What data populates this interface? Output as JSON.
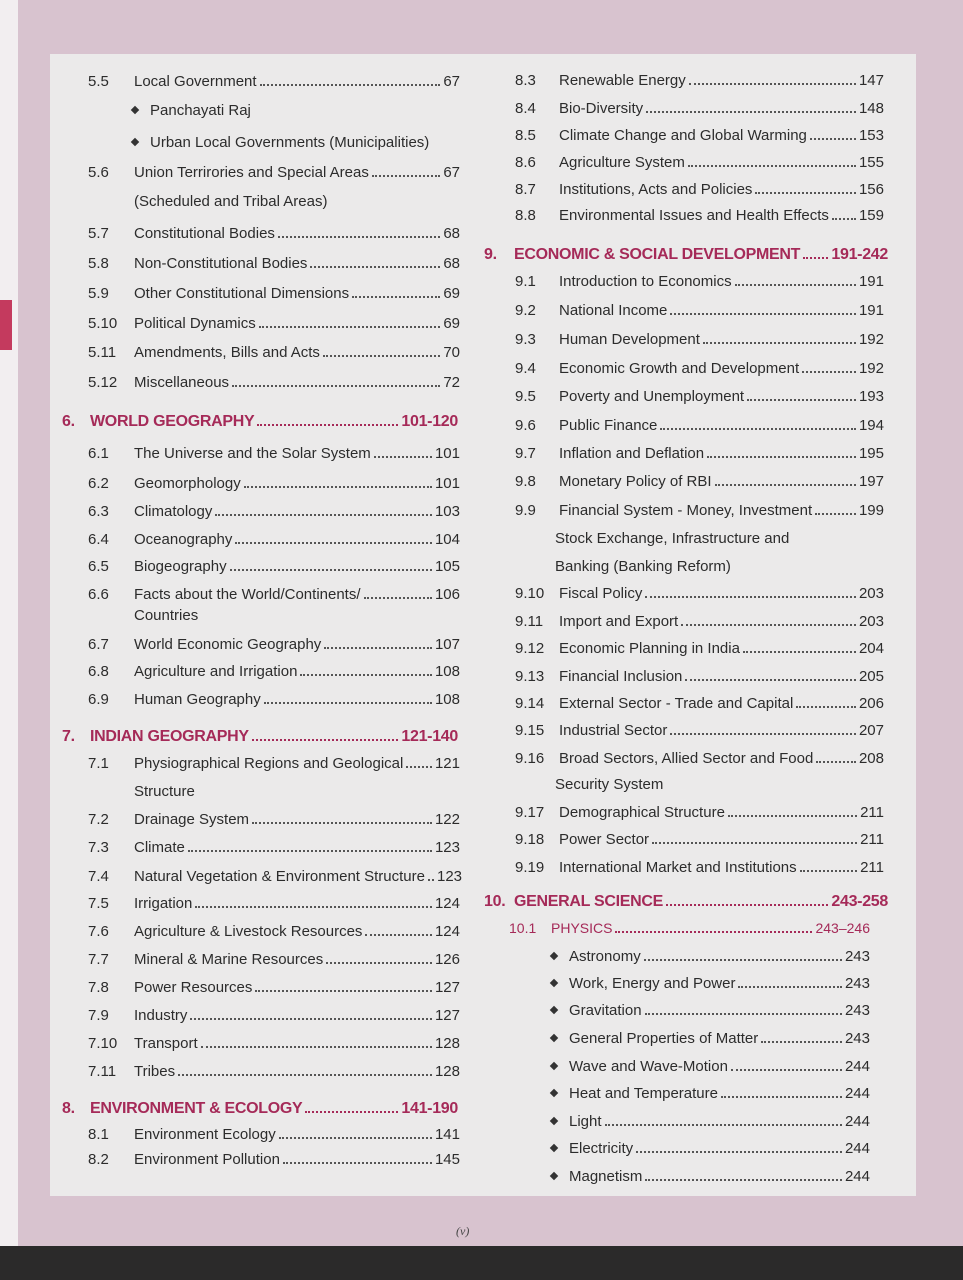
{
  "colors": {
    "heading": "#a52a58",
    "text": "#2c2c2c",
    "panel": "#ebeaea",
    "page_bg": "#d8c3cf"
  },
  "left": [
    {
      "k": "item",
      "n": "5.5",
      "t": "Local Government",
      "p": "67"
    },
    {
      "k": "sub",
      "t": "Panchayati Raj"
    },
    {
      "k": "sub",
      "t": "Urban Local Governments (Municipalities)"
    },
    {
      "k": "item",
      "n": "5.6",
      "t": "Union Terrirories and Special Areas",
      "p": "67"
    },
    {
      "k": "cont",
      "t": "(Scheduled and Tribal Areas)"
    },
    {
      "k": "item",
      "n": "5.7",
      "t": "Constitutional Bodies",
      "p": "68"
    },
    {
      "k": "item",
      "n": "5.8",
      "t": "Non-Constitutional Bodies",
      "p": "68"
    },
    {
      "k": "item",
      "n": "5.9",
      "t": "Other Constitutional Dimensions",
      "p": "69"
    },
    {
      "k": "item",
      "n": "5.10",
      "t": "Political Dynamics",
      "p": "69"
    },
    {
      "k": "item",
      "n": "5.11",
      "t": "Amendments, Bills and Acts",
      "p": "70"
    },
    {
      "k": "item",
      "n": "5.12",
      "t": "Miscellaneous",
      "p": "72"
    },
    {
      "k": "head",
      "n": "6.",
      "t": "WORLD GEOGRAPHY",
      "p": "101-120"
    },
    {
      "k": "item",
      "n": "6.1",
      "t": "The Universe and the Solar System",
      "p": "101"
    },
    {
      "k": "item",
      "n": "6.2",
      "t": "Geomorphology",
      "p": "101"
    },
    {
      "k": "item",
      "n": "6.3",
      "t": "Climatology",
      "p": "103"
    },
    {
      "k": "item",
      "n": "6.4",
      "t": "Oceanography",
      "p": "104"
    },
    {
      "k": "item",
      "n": "6.5",
      "t": "Biogeography",
      "p": "105"
    },
    {
      "k": "item",
      "n": "6.6",
      "t": "Facts about the World/Continents/",
      "p": "106"
    },
    {
      "k": "cont",
      "t": "Countries"
    },
    {
      "k": "item",
      "n": "6.7",
      "t": "World Economic Geography",
      "p": "107"
    },
    {
      "k": "item",
      "n": "6.8",
      "t": "Agriculture and Irrigation",
      "p": "108"
    },
    {
      "k": "item",
      "n": "6.9",
      "t": "Human Geography",
      "p": "108"
    },
    {
      "k": "head",
      "n": "7.",
      "t": "INDIAN GEOGRAPHY",
      "p": "121-140"
    },
    {
      "k": "item",
      "n": "7.1",
      "t": "Physiographical Regions and Geological",
      "p": "121"
    },
    {
      "k": "cont",
      "t": "Structure"
    },
    {
      "k": "item",
      "n": "7.2",
      "t": "Drainage System",
      "p": "122"
    },
    {
      "k": "item",
      "n": "7.3",
      "t": "Climate",
      "p": "123"
    },
    {
      "k": "item",
      "n": "7.4",
      "t": "Natural Vegetation & Environment Structure",
      "p": "123"
    },
    {
      "k": "item",
      "n": "7.5",
      "t": "Irrigation",
      "p": "124"
    },
    {
      "k": "item",
      "n": "7.6",
      "t": "Agriculture & Livestock Resources",
      "p": "124"
    },
    {
      "k": "item",
      "n": "7.7",
      "t": "Mineral & Marine Resources",
      "p": "126"
    },
    {
      "k": "item",
      "n": "7.8",
      "t": "Power Resources",
      "p": "127"
    },
    {
      "k": "item",
      "n": "7.9",
      "t": "Industry",
      "p": "127"
    },
    {
      "k": "item",
      "n": "7.10",
      "t": "Transport",
      "p": "128"
    },
    {
      "k": "item",
      "n": "7.11",
      "t": "Tribes",
      "p": "128"
    },
    {
      "k": "head",
      "n": "8.",
      "t": "ENVIRONMENT & ECOLOGY",
      "p": "141-190"
    },
    {
      "k": "item",
      "n": "8.1",
      "t": "Environment Ecology",
      "p": "141"
    },
    {
      "k": "item",
      "n": "8.2",
      "t": "Environment Pollution",
      "p": "145"
    }
  ],
  "right": [
    {
      "k": "item",
      "n": "8.3",
      "t": "Renewable Energy",
      "p": "147"
    },
    {
      "k": "item",
      "n": "8.4",
      "t": "Bio-Diversity",
      "p": "148"
    },
    {
      "k": "item",
      "n": "8.5",
      "t": "Climate Change and Global Warming",
      "p": "153"
    },
    {
      "k": "item",
      "n": "8.6",
      "t": "Agriculture System",
      "p": "155"
    },
    {
      "k": "item",
      "n": "8.7",
      "t": "Institutions, Acts and Policies",
      "p": "156"
    },
    {
      "k": "item",
      "n": "8.8",
      "t": "Environmental Issues and Health Effects",
      "p": "159"
    },
    {
      "k": "head",
      "n": "9.",
      "t": "ECONOMIC & SOCIAL DEVELOPMENT",
      "p": "191-242"
    },
    {
      "k": "item",
      "n": "9.1",
      "t": "Introduction to Economics",
      "p": "191"
    },
    {
      "k": "item",
      "n": "9.2",
      "t": "National Income",
      "p": "191"
    },
    {
      "k": "item",
      "n": "9.3",
      "t": "Human Development",
      "p": "192"
    },
    {
      "k": "item",
      "n": "9.4",
      "t": "Economic Growth and Development",
      "p": "192"
    },
    {
      "k": "item",
      "n": "9.5",
      "t": "Poverty and Unemployment",
      "p": "193"
    },
    {
      "k": "item",
      "n": "9.6",
      "t": "Public Finance",
      "p": "194"
    },
    {
      "k": "item",
      "n": "9.7",
      "t": "Inflation and Deflation",
      "p": "195"
    },
    {
      "k": "item",
      "n": "9.8",
      "t": "Monetary Policy of RBI",
      "p": "197"
    },
    {
      "k": "item",
      "n": "9.9",
      "t": "Financial System - Money, Investment",
      "p": "199"
    },
    {
      "k": "cont",
      "t": "Stock Exchange, Infrastructure and"
    },
    {
      "k": "cont",
      "t": "Banking (Banking Reform)"
    },
    {
      "k": "item",
      "n": "9.10",
      "t": "Fiscal Policy",
      "p": "203"
    },
    {
      "k": "item",
      "n": "9.11",
      "t": "Import and Export",
      "p": "203"
    },
    {
      "k": "item",
      "n": "9.12",
      "t": "Economic Planning in India",
      "p": "204"
    },
    {
      "k": "item",
      "n": "9.13",
      "t": "Financial Inclusion",
      "p": "205"
    },
    {
      "k": "item",
      "n": "9.14",
      "t": "External Sector - Trade and Capital",
      "p": "206"
    },
    {
      "k": "item",
      "n": "9.15",
      "t": "Industrial Sector",
      "p": "207"
    },
    {
      "k": "item",
      "n": "9.16",
      "t": "Broad Sectors, Allied Sector and Food",
      "p": "208"
    },
    {
      "k": "cont",
      "t": "Security System"
    },
    {
      "k": "item",
      "n": "9.17",
      "t": "Demographical Structure",
      "p": "211"
    },
    {
      "k": "item",
      "n": "9.18",
      "t": "Power Sector",
      "p": "211"
    },
    {
      "k": "item",
      "n": "9.19",
      "t": "International Market and Institutions",
      "p": "211"
    },
    {
      "k": "head",
      "n": "10.",
      "t": "GENERAL SCIENCE",
      "p": "243-258"
    },
    {
      "k": "phys",
      "n": "10.1",
      "t": "PHYSICS",
      "p": "243–246"
    },
    {
      "k": "sub",
      "t": "Astronomy",
      "p": "243"
    },
    {
      "k": "sub",
      "t": "Work, Energy and Power",
      "p": "243"
    },
    {
      "k": "sub",
      "t": "Gravitation",
      "p": "243"
    },
    {
      "k": "sub",
      "t": "General Properties of Matter",
      "p": "243"
    },
    {
      "k": "sub",
      "t": "Wave and Wave-Motion",
      "p": "244"
    },
    {
      "k": "sub",
      "t": "Heat and Temperature",
      "p": "244"
    },
    {
      "k": "sub",
      "t": "Light",
      "p": "244"
    },
    {
      "k": "sub",
      "t": "Electricity",
      "p": "244"
    },
    {
      "k": "sub",
      "t": "Magnetism",
      "p": "244"
    }
  ],
  "footer": {
    "page_number": "(v)"
  }
}
